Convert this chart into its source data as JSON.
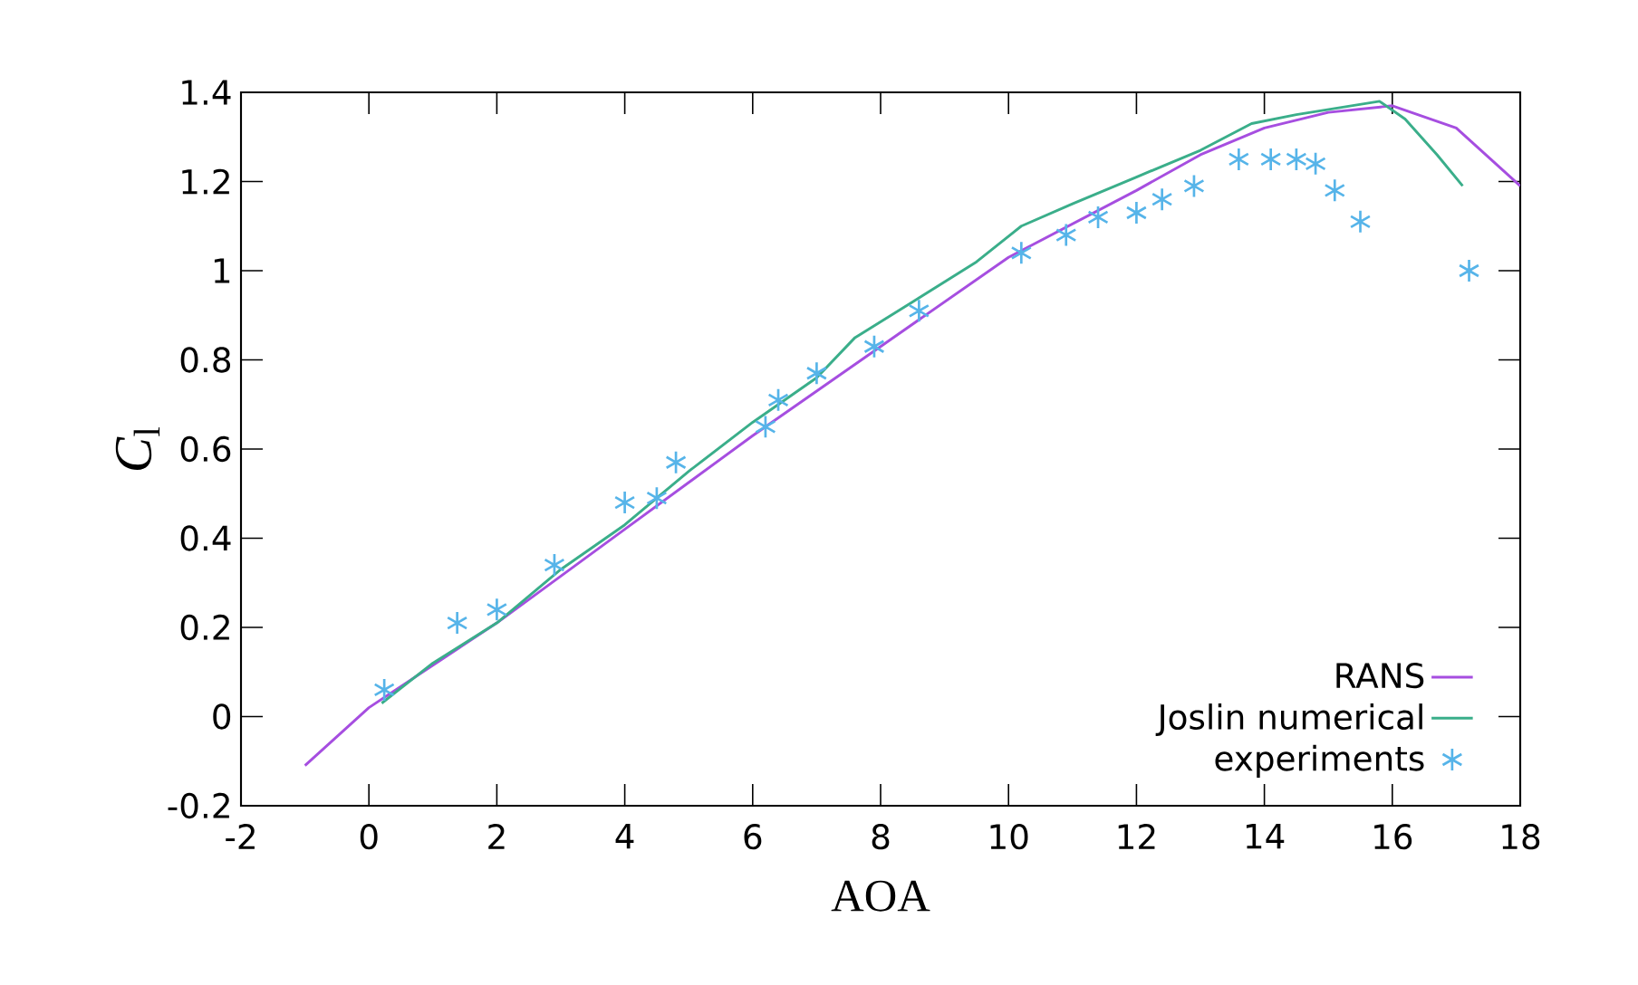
{
  "chart_data": {
    "type": "line",
    "xlabel": "AOA",
    "ylabel": "*C*$_{l}$",
    "xlim": [
      -2,
      18
    ],
    "xticks": [
      -2,
      0,
      2,
      4,
      6,
      8,
      10,
      12,
      14,
      16,
      18
    ],
    "ylim": [
      -0.2,
      1.4
    ],
    "yticks": [
      -0.2,
      0,
      0.2,
      0.4,
      0.6,
      0.8,
      1,
      1.2,
      1.4
    ],
    "grid": false,
    "legend": "bottom right",
    "series": [
      {
        "name": "RANS",
        "color": "#a64ee0",
        "x": [
          -1,
          0,
          2,
          4,
          6,
          8,
          10,
          12,
          13,
          14,
          15,
          16,
          17,
          18
        ],
        "values": [
          -0.11,
          0.02,
          0.21,
          0.42,
          0.63,
          0.83,
          1.03,
          1.18,
          1.26,
          1.32,
          1.355,
          1.37,
          1.32,
          1.19
        ]
      },
      {
        "name": "Joslin numerical",
        "color": "#3aae8a",
        "x": [
          0.2,
          1,
          2,
          3,
          4,
          5,
          6,
          7,
          7.6,
          8.5,
          9.5,
          10.2,
          11,
          12,
          13,
          13.8,
          14.5,
          15.8,
          16.2,
          16.7,
          17.1
        ],
        "values": [
          0.03,
          0.12,
          0.21,
          0.33,
          0.43,
          0.55,
          0.66,
          0.76,
          0.85,
          0.93,
          1.02,
          1.1,
          1.15,
          1.21,
          1.27,
          1.33,
          1.35,
          1.38,
          1.34,
          1.26,
          1.19
        ]
      },
      {
        "name": "experiments",
        "type": "scatter",
        "marker": "cross",
        "color": "#56b4e9",
        "x": [
          0.24,
          1.38,
          2.0,
          2.9,
          4.0,
          4.5,
          4.8,
          6.2,
          6.4,
          7.0,
          7.9,
          8.6,
          10.2,
          10.9,
          11.4,
          12.0,
          12.4,
          12.9,
          13.6,
          14.1,
          14.5,
          14.8,
          15.1,
          15.5,
          17.2
        ],
        "values": [
          0.06,
          0.21,
          0.24,
          0.34,
          0.48,
          0.49,
          0.57,
          0.65,
          0.71,
          0.77,
          0.83,
          0.91,
          1.04,
          1.08,
          1.12,
          1.13,
          1.16,
          1.19,
          1.25,
          1.25,
          1.25,
          1.24,
          1.18,
          1.11,
          1.0
        ]
      }
    ]
  }
}
